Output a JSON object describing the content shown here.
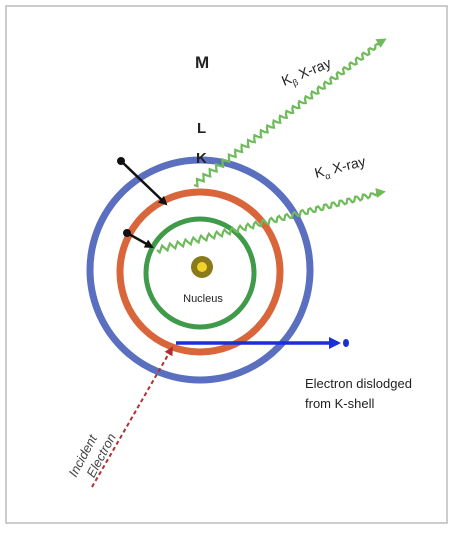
{
  "labels": {
    "shell_m": "M",
    "shell_l": "L",
    "shell_k": "K",
    "nucleus": "Nucleus",
    "kbeta_base": "K",
    "kbeta_sub": "β",
    "kbeta_suffix": " X-ray",
    "kalpha_base": "K",
    "kalpha_sub": "α",
    "kalpha_suffix": " X-ray",
    "dislodged_line1": "Electron dislodged",
    "dislodged_line2": "from K-shell",
    "incident_line1": "Incident",
    "incident_line2": "Electron"
  },
  "colors": {
    "shell_m": "#5b6fc0",
    "shell_l": "#d9653a",
    "shell_k": "#3f9a4a",
    "xray": "#6fba5a",
    "dislodged_arrow": "#1a2fd6",
    "incident_arrow": "#b0302f",
    "transition_arrow": "#111111",
    "nucleus_fill": "#f2d22a",
    "nucleus_ring": "#8a7a1a"
  }
}
